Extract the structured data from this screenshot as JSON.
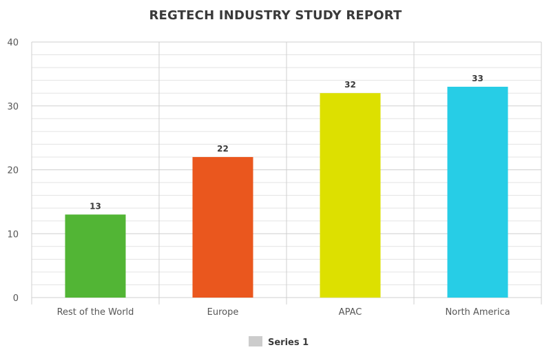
{
  "chart_data": {
    "type": "bar",
    "title": "REGTECH INDUSTRY STUDY REPORT",
    "xlabel": "",
    "ylabel": "",
    "categories": [
      "Rest of the World",
      "Europe",
      "APAC",
      "North America"
    ],
    "series": [
      {
        "name": "Series 1",
        "values": [
          13,
          22,
          32,
          33
        ],
        "colors": [
          "#52b535",
          "#ea571e",
          "#dde000",
          "#27cde6"
        ]
      }
    ],
    "ylim": [
      0,
      40
    ],
    "yticks": [
      0,
      10,
      20,
      30,
      40
    ],
    "minor_grid_step": 2,
    "grid": true,
    "legend": {
      "position": "bottom-center",
      "swatch_color": "#cccccc"
    }
  }
}
